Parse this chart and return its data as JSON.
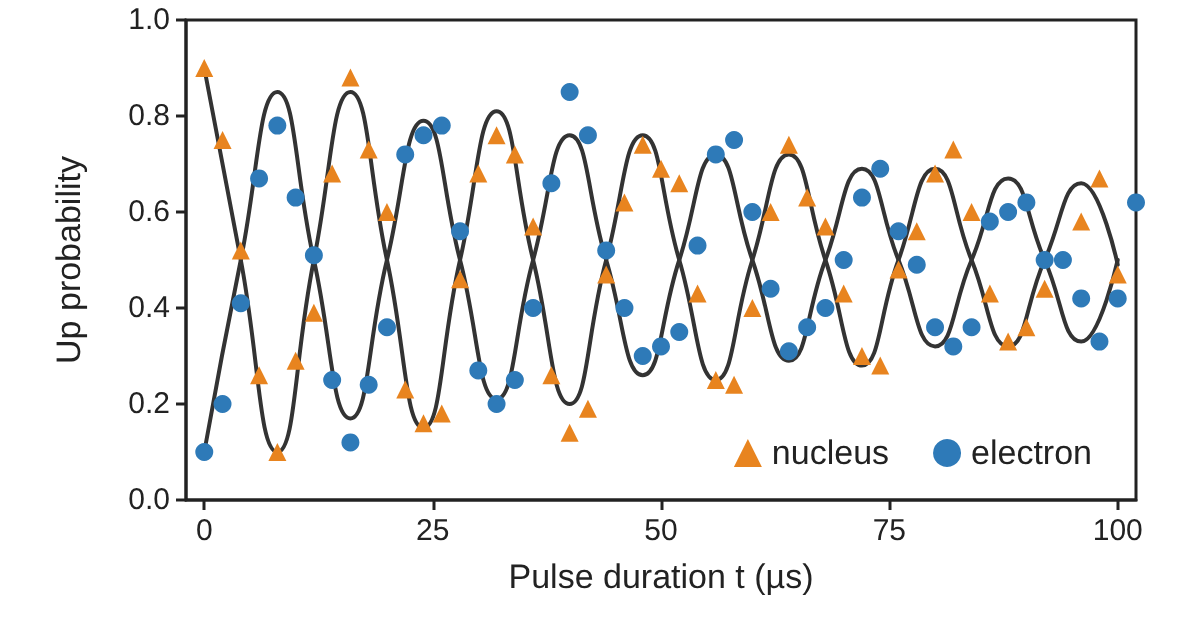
{
  "chart_data": {
    "type": "scatter",
    "xlabel": "Pulse duration t (µs)",
    "ylabel": "Up probability",
    "xlim": [
      -2,
      102
    ],
    "xticks": [
      0,
      25,
      50,
      75,
      100
    ],
    "ylim": [
      0,
      1
    ],
    "yticks": [
      {
        "value": 0,
        "label": "0.0"
      },
      {
        "value": 0.2,
        "label": "0.2"
      },
      {
        "value": 0.4,
        "label": "0.4"
      },
      {
        "value": 0.6,
        "label": "0.6"
      },
      {
        "value": 0.8,
        "label": "0.8"
      },
      {
        "value": 1,
        "label": "1.0"
      }
    ],
    "grid": false,
    "legend": "bottom right",
    "series": [
      {
        "name": "nucleus",
        "marker": "triangle",
        "color": "#e8841f",
        "x": [
          0,
          2,
          4,
          6,
          8,
          10,
          12,
          14,
          16,
          18,
          20,
          22,
          24,
          26,
          28,
          30,
          32,
          34,
          36,
          38,
          40,
          42,
          44,
          46,
          48,
          50,
          52,
          54,
          56,
          58,
          60,
          62,
          64,
          66,
          68,
          70,
          72,
          74,
          76,
          78,
          80,
          82,
          84,
          86,
          88,
          90,
          92,
          96,
          98,
          100
        ],
        "values": [
          0.9,
          0.75,
          0.52,
          0.26,
          0.1,
          0.29,
          0.39,
          0.68,
          0.88,
          0.73,
          0.6,
          0.23,
          0.16,
          0.18,
          0.46,
          0.68,
          0.76,
          0.72,
          0.57,
          0.26,
          0.14,
          0.19,
          0.47,
          0.62,
          0.74,
          0.69,
          0.66,
          0.43,
          0.25,
          0.24,
          0.4,
          0.6,
          0.74,
          0.63,
          0.57,
          0.43,
          0.3,
          0.28,
          0.48,
          0.56,
          0.68,
          0.73,
          0.6,
          0.43,
          0.33,
          0.36,
          0.44,
          0.58,
          0.67,
          0.47
        ]
      },
      {
        "name": "electron",
        "marker": "circle",
        "color": "#2e7ab8",
        "x": [
          0,
          2,
          4,
          6,
          8,
          10,
          12,
          14,
          16,
          18,
          20,
          22,
          24,
          26,
          28,
          30,
          32,
          34,
          36,
          38,
          40,
          42,
          44,
          46,
          48,
          50,
          52,
          54,
          56,
          58,
          60,
          62,
          64,
          66,
          68,
          70,
          72,
          74,
          76,
          78,
          80,
          82,
          84,
          86,
          88,
          90,
          92,
          94,
          96,
          98,
          100,
          102
        ],
        "values": [
          0.1,
          0.2,
          0.41,
          0.67,
          0.78,
          0.63,
          0.51,
          0.25,
          0.12,
          0.24,
          0.36,
          0.72,
          0.76,
          0.78,
          0.56,
          0.27,
          0.2,
          0.25,
          0.4,
          0.66,
          0.85,
          0.76,
          0.52,
          0.4,
          0.3,
          0.32,
          0.35,
          0.53,
          0.72,
          0.75,
          0.6,
          0.44,
          0.31,
          0.36,
          0.4,
          0.5,
          0.63,
          0.69,
          0.56,
          0.49,
          0.36,
          0.32,
          0.36,
          0.58,
          0.6,
          0.62,
          0.5,
          0.5,
          0.42,
          0.33,
          0.42,
          0.62
        ]
      },
      {
        "type": "line",
        "marker": "none",
        "color": "#333333",
        "x": [
          0,
          4,
          8,
          12,
          16,
          20,
          24,
          28,
          32,
          36,
          40,
          44,
          48,
          52,
          56,
          60,
          64,
          68,
          72,
          76,
          80,
          84,
          88,
          92,
          96,
          100
        ],
        "values": [
          0.9,
          0.5,
          0.1,
          0.5,
          0.85,
          0.5,
          0.15,
          0.5,
          0.81,
          0.5,
          0.2,
          0.5,
          0.76,
          0.5,
          0.25,
          0.5,
          0.72,
          0.5,
          0.28,
          0.5,
          0.69,
          0.5,
          0.32,
          0.5,
          0.66,
          0.49
        ]
      },
      {
        "type": "line",
        "marker": "none",
        "color": "#333333",
        "x": [
          0,
          4,
          8,
          12,
          16,
          20,
          24,
          28,
          32,
          36,
          40,
          44,
          48,
          52,
          56,
          60,
          64,
          68,
          72,
          76,
          80,
          84,
          88,
          92,
          96,
          100
        ],
        "values": [
          0.1,
          0.5,
          0.85,
          0.5,
          0.17,
          0.5,
          0.79,
          0.5,
          0.21,
          0.5,
          0.76,
          0.5,
          0.26,
          0.5,
          0.72,
          0.5,
          0.29,
          0.5,
          0.69,
          0.5,
          0.32,
          0.5,
          0.67,
          0.5,
          0.33,
          0.5
        ]
      }
    ]
  }
}
